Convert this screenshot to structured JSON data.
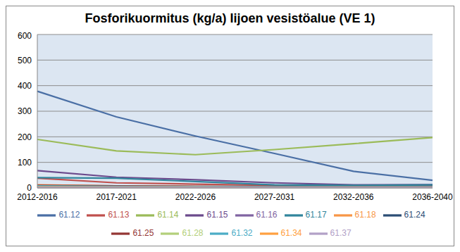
{
  "chart_data": {
    "type": "line",
    "title": "Fosforikuormitus (kg/a) Iijoen vesistöalue (VE 1)",
    "categories": [
      "2012-2016",
      "2017-2021",
      "2022-2026",
      "2027-2031",
      "2032-2036",
      "2036-2040"
    ],
    "ylim": [
      0,
      600
    ],
    "yticks": [
      0,
      100,
      200,
      300,
      400,
      500,
      600
    ],
    "grid": true,
    "legend": "bottom",
    "series": [
      {
        "name": "61.12",
        "color": "#4A6FA5",
        "values": [
          378,
          278,
          203,
          135,
          65,
          30
        ]
      },
      {
        "name": "61.13",
        "color": "#C0504D",
        "values": [
          38,
          20,
          15,
          10,
          10,
          10
        ]
      },
      {
        "name": "61.14",
        "color": "#9BBB59",
        "values": [
          190,
          145,
          130,
          150,
          173,
          197
        ]
      },
      {
        "name": "61.15",
        "color": "#6B4A8C",
        "values": [
          68,
          42,
          32,
          20,
          12,
          13
        ]
      },
      {
        "name": "61.16",
        "color": "#8064A2",
        "values": [
          10,
          8,
          6,
          5,
          5,
          5
        ]
      },
      {
        "name": "61.17",
        "color": "#31859C",
        "values": [
          40,
          38,
          25,
          12,
          10,
          12
        ]
      },
      {
        "name": "61.18",
        "color": "#F79646",
        "values": [
          12,
          8,
          6,
          5,
          5,
          5
        ]
      },
      {
        "name": "61.24",
        "color": "#2C4D75",
        "values": [
          5,
          4,
          3,
          3,
          3,
          3
        ]
      },
      {
        "name": "61.25",
        "color": "#943634",
        "values": [
          10,
          8,
          6,
          5,
          5,
          5
        ]
      },
      {
        "name": "61.28",
        "color": "#B3CF7A",
        "values": [
          3,
          3,
          3,
          3,
          3,
          3
        ]
      },
      {
        "name": "61.32",
        "color": "#4BACC6",
        "values": [
          8,
          6,
          5,
          4,
          4,
          4
        ]
      },
      {
        "name": "61.34",
        "color": "#FFA040",
        "values": [
          4,
          3,
          3,
          2,
          2,
          2
        ]
      },
      {
        "name": "61.37",
        "color": "#B2A1C7",
        "values": [
          2,
          2,
          2,
          2,
          2,
          2
        ]
      }
    ]
  }
}
